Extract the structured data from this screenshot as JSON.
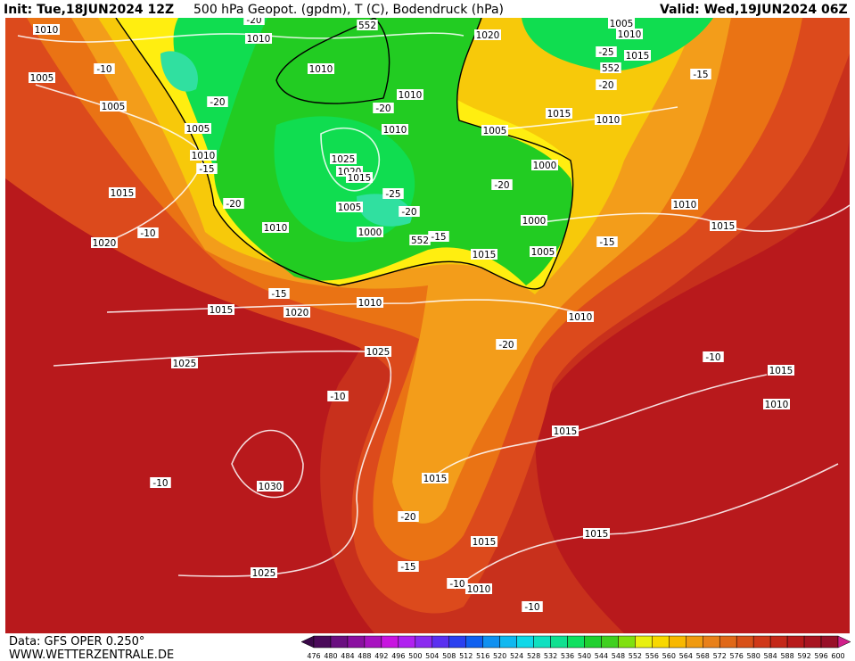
{
  "header": {
    "init": "Init: Tue,18JUN2024 12Z",
    "title": "500 hPa Geopot. (gpdm), T (C), Bodendruck (hPa)",
    "valid": "Valid: Wed,19JUN2024 06Z"
  },
  "footer": {
    "source": "Data: GFS OPER 0.250°",
    "site": "WWW.WETTERZENTRALE.DE"
  },
  "colorbar": {
    "labels": [
      476,
      480,
      484,
      488,
      492,
      496,
      500,
      504,
      508,
      512,
      516,
      520,
      524,
      528,
      532,
      536,
      540,
      544,
      548,
      552,
      556,
      560,
      564,
      568,
      572,
      576,
      580,
      584,
      588,
      592,
      596,
      600
    ],
    "colors": [
      "#4b0a5a",
      "#6a0f80",
      "#8a10a0",
      "#a812c0",
      "#c814e0",
      "#b020f0",
      "#8a2af0",
      "#5a30f0",
      "#2a40f0",
      "#1060f0",
      "#1090f0",
      "#10b8f0",
      "#10d8e8",
      "#10e0c0",
      "#10e090",
      "#10e060",
      "#20d030",
      "#40d020",
      "#80e010",
      "#e8f010",
      "#f8d800",
      "#f8b800",
      "#f09a10",
      "#e8801a",
      "#e06818",
      "#d85018",
      "#d03818",
      "#c42818",
      "#b81a1a",
      "#a81420",
      "#981028"
    ],
    "low_arrow": "#3a0848",
    "high_arrow": "#d0208a"
  },
  "map_labels": [
    "1010",
    "1005",
    "1005",
    "1005",
    "1010",
    "1015",
    "1020",
    "1010",
    "1010",
    "1010",
    "1010",
    "1025",
    "1020",
    "1015",
    "1005",
    "1000",
    "1010",
    "1015",
    "1020",
    "1010",
    "1025",
    "1025",
    "1030",
    "1025",
    "1015",
    "1015",
    "1010",
    "1015",
    "1015",
    "1010",
    "1005",
    "1000",
    "1000",
    "1015",
    "1005",
    "1015",
    "1010",
    "1020",
    "1005",
    "1010",
    "1015",
    "1010",
    "1015",
    "1015",
    "1010",
    "-10",
    "-20",
    "-15",
    "-20",
    "-10",
    "-15",
    "-20",
    "-25",
    "-20",
    "-15",
    "-20",
    "-15",
    "-20",
    "-10",
    "-10",
    "-20",
    "-15",
    "-10",
    "-10",
    "-10",
    "-15",
    "-20",
    "-25",
    "-20",
    "552",
    "552",
    "552"
  ]
}
